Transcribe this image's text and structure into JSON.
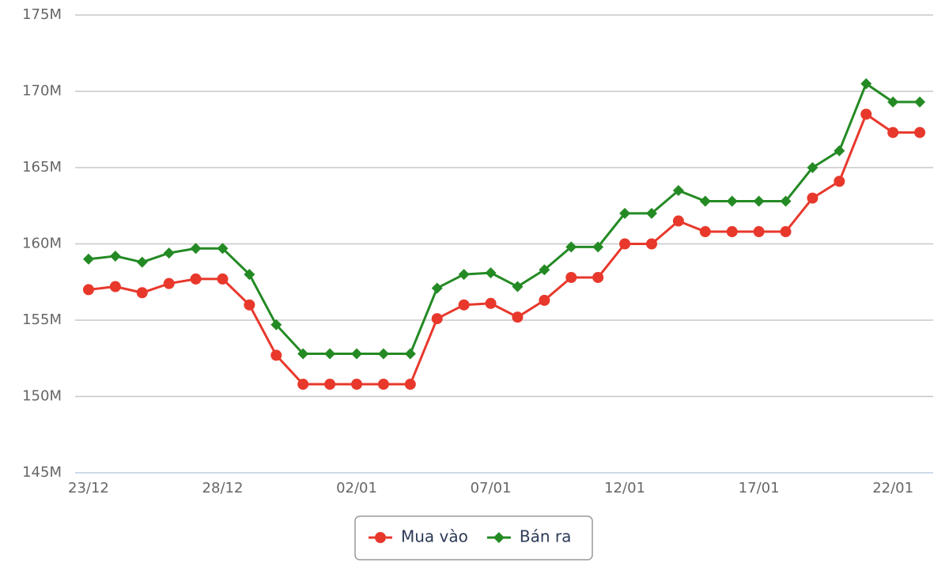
{
  "chart_data": {
    "type": "line",
    "categories": [
      "23/12",
      null,
      null,
      null,
      null,
      "28/12",
      null,
      null,
      null,
      null,
      "02/01",
      null,
      null,
      null,
      null,
      "07/01",
      null,
      null,
      null,
      null,
      "12/01",
      null,
      null,
      null,
      null,
      "17/01",
      null,
      null,
      null,
      null,
      "22/01",
      null
    ],
    "series": [
      {
        "name": "Mua vào",
        "color": "#e8382c",
        "marker": "circle",
        "values": [
          157.0,
          157.2,
          156.8,
          157.4,
          157.7,
          157.7,
          156.0,
          152.7,
          150.8,
          150.8,
          150.8,
          150.8,
          150.8,
          155.1,
          156.0,
          156.1,
          155.2,
          156.3,
          157.8,
          157.8,
          160.0,
          160.0,
          161.5,
          160.8,
          160.8,
          160.8,
          160.8,
          163.0,
          164.1,
          168.5,
          167.3,
          167.3
        ]
      },
      {
        "name": "Bán ra",
        "color": "#248a24",
        "marker": "diamond",
        "values": [
          159.0,
          159.2,
          158.8,
          159.4,
          159.7,
          159.7,
          158.0,
          154.7,
          152.8,
          152.8,
          152.8,
          152.8,
          152.8,
          157.1,
          158.0,
          158.1,
          157.2,
          158.3,
          159.8,
          159.8,
          162.0,
          162.0,
          163.5,
          162.8,
          162.8,
          162.8,
          162.8,
          165.0,
          166.1,
          170.5,
          169.3,
          169.3
        ]
      }
    ],
    "ylim": [
      145,
      175
    ],
    "yticks": [
      {
        "value": 145,
        "label": "145M"
      },
      {
        "value": 150,
        "label": "150M"
      },
      {
        "value": 155,
        "label": "155M"
      },
      {
        "value": 160,
        "label": "160M"
      },
      {
        "value": 165,
        "label": "165M"
      },
      {
        "value": 170,
        "label": "170M"
      },
      {
        "value": 175,
        "label": "175M"
      }
    ],
    "grid": true,
    "legend": "bottom"
  }
}
